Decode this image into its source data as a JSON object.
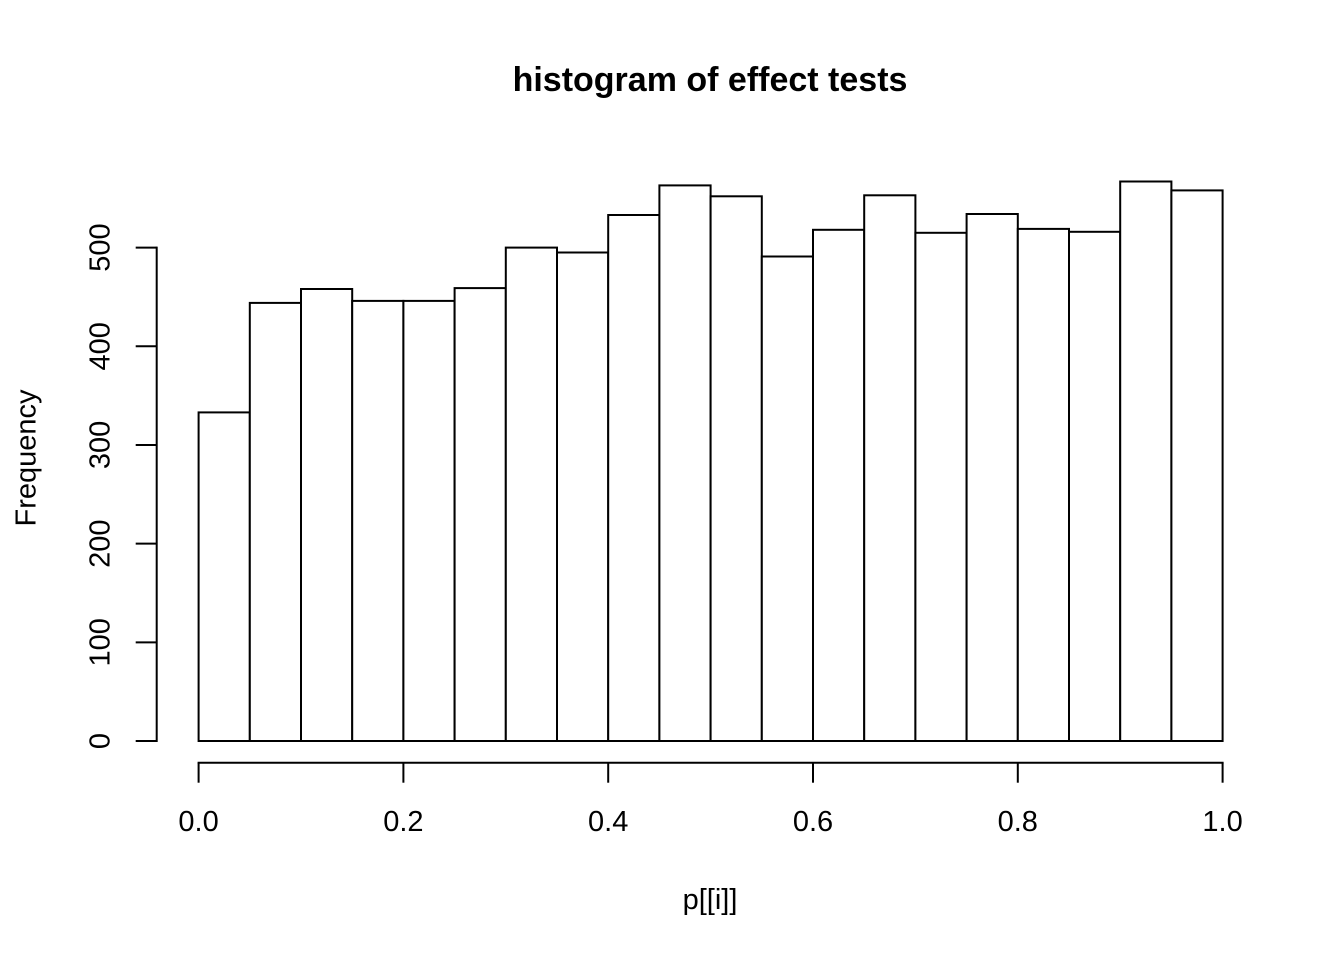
{
  "chart_data": {
    "type": "bar",
    "subtype": "histogram",
    "title": "histogram of effect tests",
    "xlabel": "p[[i]]",
    "ylabel": "Frequency",
    "bin_start": 0.0,
    "bin_width": 0.05,
    "bin_edges": [
      0.0,
      0.05,
      0.1,
      0.15,
      0.2,
      0.25,
      0.3,
      0.35,
      0.4,
      0.45,
      0.5,
      0.55,
      0.6,
      0.65,
      0.7,
      0.75,
      0.8,
      0.85,
      0.9,
      0.95,
      1.0
    ],
    "values": [
      333,
      444,
      458,
      446,
      446,
      459,
      500,
      495,
      533,
      563,
      552,
      491,
      518,
      553,
      515,
      534,
      519,
      516,
      567,
      558
    ],
    "xlim": [
      0.0,
      1.0
    ],
    "ylim": [
      0,
      500
    ],
    "x_ticks": [
      0.0,
      0.2,
      0.4,
      0.6,
      0.8,
      1.0
    ],
    "x_tick_labels": [
      "0.0",
      "0.2",
      "0.4",
      "0.6",
      "0.8",
      "1.0"
    ],
    "y_ticks": [
      0,
      100,
      200,
      300,
      400,
      500
    ],
    "y_tick_labels": [
      "0",
      "100",
      "200",
      "300",
      "400",
      "500"
    ],
    "grid": false,
    "legend": null,
    "bar_fill": "#ffffff",
    "bar_stroke": "#000000",
    "axis_color": "#000000",
    "text_color": "#000000",
    "background": "#ffffff"
  }
}
